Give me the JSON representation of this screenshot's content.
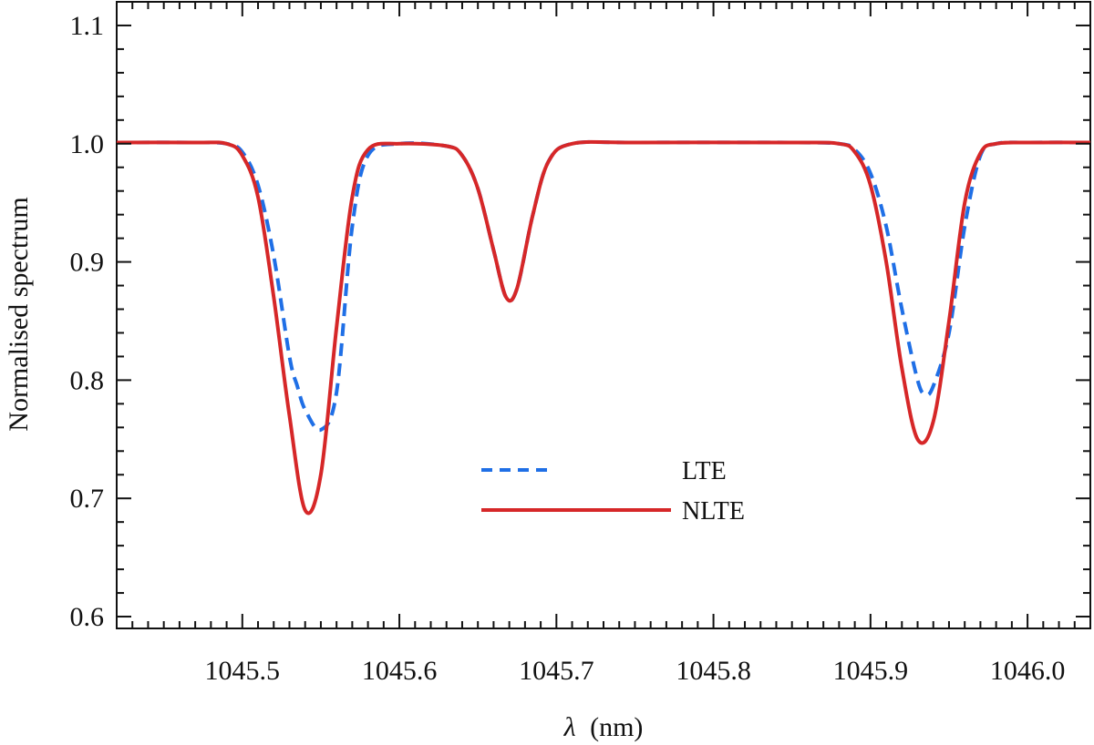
{
  "chart_data": {
    "type": "line",
    "xlabel_symbol": "λ",
    "xlabel_unit": "(nm)",
    "ylabel": "Normalised spectrum",
    "xlim": [
      1045.42,
      1046.04
    ],
    "ylim": [
      0.59,
      1.12
    ],
    "xticks": [
      1045.5,
      1045.6,
      1045.7,
      1045.8,
      1045.9,
      1046.0
    ],
    "xtick_labels": [
      "1045.5",
      "1045.6",
      "1045.7",
      "1045.8",
      "1045.9",
      "1046.0"
    ],
    "yticks": [
      0.6,
      0.7,
      0.8,
      0.9,
      1.0,
      1.1
    ],
    "ytick_labels": [
      "0.6",
      "0.7",
      "0.8",
      "0.9",
      "1.0",
      "1.1"
    ],
    "legend_position": "center-bottom",
    "grid": false,
    "series": [
      {
        "name": "LTE",
        "color": "#1f6fe6",
        "style": "dashed",
        "x": [
          1045.42,
          1045.47,
          1045.49,
          1045.5,
          1045.51,
          1045.52,
          1045.53,
          1045.535,
          1045.54,
          1045.55,
          1045.56,
          1045.57,
          1045.58,
          1045.6,
          1045.63,
          1045.64,
          1045.65,
          1045.66,
          1045.668,
          1045.675,
          1045.685,
          1045.695,
          1045.71,
          1045.75,
          1045.85,
          1045.88,
          1045.89,
          1045.9,
          1045.91,
          1045.92,
          1045.93,
          1045.935,
          1045.94,
          1045.95,
          1045.96,
          1045.97,
          1045.98,
          1046.0,
          1046.04
        ],
        "y": [
          1.001,
          1.001,
          1.0,
          0.993,
          0.965,
          0.905,
          0.82,
          0.795,
          0.775,
          0.758,
          0.79,
          0.93,
          0.99,
          1.0,
          0.998,
          0.99,
          0.962,
          0.91,
          0.87,
          0.878,
          0.94,
          0.985,
          1.0,
          1.001,
          1.001,
          1.0,
          0.995,
          0.975,
          0.93,
          0.86,
          0.8,
          0.788,
          0.795,
          0.84,
          0.93,
          0.99,
          1.0,
          1.001,
          1.001
        ]
      },
      {
        "name": "NLTE",
        "color": "#d62728",
        "style": "solid",
        "x": [
          1045.42,
          1045.47,
          1045.49,
          1045.5,
          1045.51,
          1045.52,
          1045.53,
          1045.54,
          1045.55,
          1045.56,
          1045.57,
          1045.58,
          1045.6,
          1045.63,
          1045.64,
          1045.65,
          1045.66,
          1045.668,
          1045.675,
          1045.685,
          1045.695,
          1045.71,
          1045.75,
          1045.85,
          1045.88,
          1045.89,
          1045.9,
          1045.91,
          1045.92,
          1045.93,
          1045.94,
          1045.95,
          1045.96,
          1045.97,
          1045.98,
          1046.0,
          1046.04
        ],
        "y": [
          1.001,
          1.001,
          1.0,
          0.99,
          0.955,
          0.87,
          0.77,
          0.69,
          0.72,
          0.845,
          0.955,
          0.995,
          1.0,
          0.998,
          0.99,
          0.962,
          0.91,
          0.87,
          0.878,
          0.94,
          0.985,
          1.0,
          1.001,
          1.001,
          1.0,
          0.993,
          0.965,
          0.9,
          0.81,
          0.75,
          0.765,
          0.85,
          0.95,
          0.992,
          1.0,
          1.001,
          1.001
        ]
      }
    ]
  }
}
